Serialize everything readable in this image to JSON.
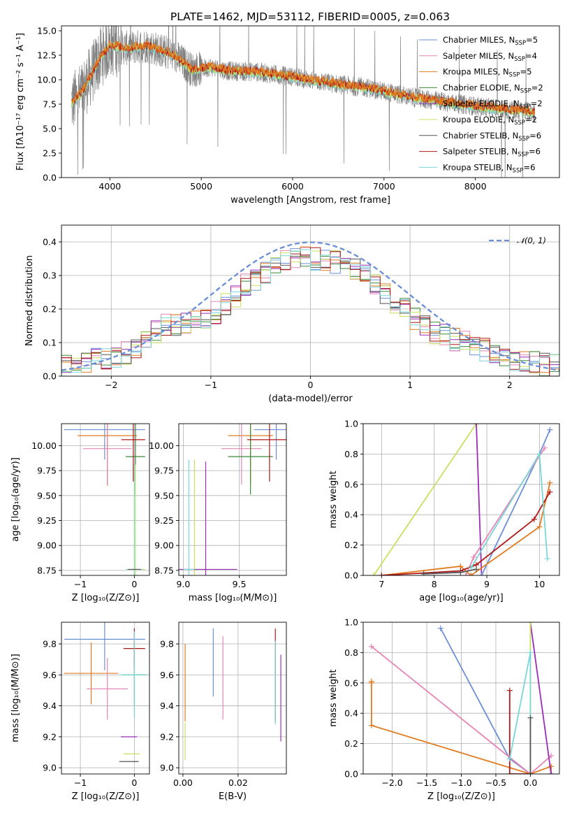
{
  "figure_title": "PLATE=1462, MJD=53112, FIBERID=0005, z=0.063",
  "legend": [
    {
      "text": "Chabrier MILES, N",
      "sub": "SSP",
      "tail": "=5",
      "color": "#6a8fd6"
    },
    {
      "text": "Salpeter MILES, N",
      "sub": "SSP",
      "tail": "=4",
      "color": "#e585b5"
    },
    {
      "text": "Kroupa MILES, N",
      "sub": "SSP",
      "tail": "=5",
      "color": "#e07b20"
    },
    {
      "text": "Chabrier ELODIE, N",
      "sub": "SSP",
      "tail": "=2",
      "color": "#3a8a3a"
    },
    {
      "text": "Salpeter ELODIE, N",
      "sub": "SSP",
      "tail": "=2",
      "color": "#9a2db8"
    },
    {
      "text": "Kroupa ELODIE, N",
      "sub": "SSP",
      "tail": "=2",
      "color": "#c8e060"
    },
    {
      "text": "Chabrier STELIB, N",
      "sub": "SSP",
      "tail": "=6",
      "color": "#555555"
    },
    {
      "text": "Salpeter STELIB, N",
      "sub": "SSP",
      "tail": "=6",
      "color": "#b01818"
    },
    {
      "text": "Kroupa STELIB, N",
      "sub": "SSP",
      "tail": "=6",
      "color": "#7ad6d6"
    }
  ],
  "normal_label": "𝒩(0, 1)",
  "chart_data": [
    {
      "id": "spectrum",
      "type": "line",
      "xlabel": "wavelength [Angstrom, rest frame]",
      "ylabel": "Flux [fλ10⁻¹⁷ erg cm⁻² s⁻¹ A⁻¹]",
      "xlim": [
        3470,
        8920
      ],
      "ylim": [
        0,
        15.5
      ],
      "xticks": [
        4000,
        5000,
        6000,
        7000,
        8000
      ],
      "yticks": [
        0.0,
        2.5,
        5.0,
        7.5,
        10.0,
        12.5,
        15.0
      ],
      "data_color": "#808080",
      "model_colors": [
        "#7ad6d6",
        "#c8e060",
        "#b01818",
        "#e07b20"
      ],
      "data_x_range": [
        3580,
        8650
      ],
      "model_anchor_points": {
        "x": [
          3580,
          3700,
          3900,
          4000,
          4200,
          4400,
          4700,
          4900,
          5100,
          5300,
          5600,
          6000,
          6300,
          6600,
          6800,
          7000,
          7300,
          7600,
          8000,
          8300,
          8650
        ],
        "y": [
          7.6,
          8.8,
          12.3,
          13.5,
          13.2,
          13.5,
          12.5,
          11.0,
          11.3,
          10.9,
          10.8,
          10.3,
          9.8,
          9.4,
          9.2,
          8.8,
          8.2,
          7.8,
          7.3,
          7.0,
          6.7
        ]
      }
    },
    {
      "id": "residual_histogram",
      "type": "line",
      "xlabel": "(data-model)/error",
      "ylabel": "Normed distribution",
      "xlim": [
        -2.5,
        2.5
      ],
      "ylim": [
        0,
        0.45
      ],
      "xticks": [
        -2,
        -1,
        0,
        1,
        2
      ],
      "yticks": [
        0.0,
        0.1,
        0.2,
        0.3,
        0.4
      ],
      "series": [
        {
          "name": "𝒩(0, 1)",
          "function": "normal pdf, mean 0, sigma 1",
          "color": "#6a8fd6"
        }
      ],
      "bin_count": 50,
      "histogram_colors": [
        "#6a8fd6",
        "#e585b5",
        "#e07b20",
        "#3a8a3a",
        "#9a2db8",
        "#c8e060",
        "#555555",
        "#b01818",
        "#7ad6d6"
      ],
      "histogram_base_heights": [
        0.035,
        0.04,
        0.045,
        0.05,
        0.055,
        0.06,
        0.07,
        0.08,
        0.1,
        0.13,
        0.15,
        0.155,
        0.16,
        0.165,
        0.17,
        0.19,
        0.215,
        0.24,
        0.27,
        0.29,
        0.31,
        0.33,
        0.34,
        0.35,
        0.355,
        0.35,
        0.345,
        0.34,
        0.33,
        0.32,
        0.3,
        0.27,
        0.24,
        0.22,
        0.2,
        0.17,
        0.15,
        0.13,
        0.12,
        0.11,
        0.1,
        0.09,
        0.08,
        0.07,
        0.06,
        0.05,
        0.045,
        0.04,
        0.035,
        0.03
      ]
    },
    {
      "id": "z_vs_age",
      "type": "scatter",
      "xlabel": "Z [log₁₀(Z/Z⊙)]",
      "ylabel": "age  [log₁₀(age/yr)]",
      "xlim": [
        -1.35,
        0.28
      ],
      "ylim": [
        8.7,
        10.22
      ],
      "xticks": [
        -1,
        0
      ],
      "yticks": [
        8.75,
        9.0,
        9.25,
        9.5,
        9.75,
        10.0
      ],
      "points": [
        {
          "x": -0.55,
          "y": 10.16,
          "xerr": 0.75,
          "yerr": 0.3,
          "color": "#6a8fd6"
        },
        {
          "x": -0.5,
          "y": 10.1,
          "xerr": 0.55,
          "yerr": 0.5,
          "color": "#e07b20"
        },
        {
          "x": -0.5,
          "y": 9.97,
          "xerr": 0.45,
          "yerr": 0.36,
          "color": "#e585b5"
        },
        {
          "x": 0.02,
          "y": 9.89,
          "xerr": 0.18,
          "yerr": 0.38,
          "color": "#3a8a3a"
        },
        {
          "x": -0.02,
          "y": 10.06,
          "xerr": 0.22,
          "yerr": 0.42,
          "color": "#b01818"
        },
        {
          "x": 0.02,
          "y": 8.76,
          "xerr": 0.18,
          "yerr": 1.05,
          "color": "#c8e060"
        },
        {
          "x": 0.0,
          "y": 8.76,
          "xerr": 0.15,
          "yerr": 1.05,
          "color": "#7ad6d6"
        },
        {
          "x": 0.0,
          "y": 8.76,
          "xerr": 0.12,
          "yerr": 0.0,
          "color": "#555555"
        }
      ]
    },
    {
      "id": "mass_vs_age",
      "type": "scatter",
      "xlabel": "mass [log₁₀(M/M⊙)]",
      "ylabel": "",
      "xlim": [
        8.96,
        9.92
      ],
      "ylim": [
        8.7,
        10.22
      ],
      "xticks": [
        9.0,
        9.5
      ],
      "yticks": [
        8.75,
        9.0,
        9.25,
        9.5,
        9.75,
        10.0
      ],
      "points": [
        {
          "x": 9.83,
          "y": 10.16,
          "xerr": 0.2,
          "yerr": 0.3,
          "color": "#6a8fd6"
        },
        {
          "x": 9.6,
          "y": 10.1,
          "xerr": 0.2,
          "yerr": 0.5,
          "color": "#e07b20"
        },
        {
          "x": 9.52,
          "y": 9.97,
          "xerr": 0.18,
          "yerr": 0.36,
          "color": "#e585b5"
        },
        {
          "x": 9.6,
          "y": 9.89,
          "xerr": 0.2,
          "yerr": 0.38,
          "color": "#3a8a3a"
        },
        {
          "x": 9.77,
          "y": 10.06,
          "xerr": 0.2,
          "yerr": 0.42,
          "color": "#b01818"
        },
        {
          "x": 9.1,
          "y": 8.76,
          "xerr": 0.12,
          "yerr": 1.1,
          "color": "#c8e060"
        },
        {
          "x": 9.2,
          "y": 8.76,
          "xerr": 0.28,
          "yerr": 1.08,
          "color": "#9a2db8"
        },
        {
          "x": 9.05,
          "y": 8.76,
          "xerr": 0.05,
          "yerr": 1.1,
          "color": "#7ad6d6"
        }
      ]
    },
    {
      "id": "age_vs_weight",
      "type": "line",
      "xlabel": "age  [log₁₀(age/yr)]",
      "ylabel": "mass weight",
      "xlim": [
        6.65,
        10.38
      ],
      "ylim": [
        0,
        1.0
      ],
      "xticks": [
        7,
        8,
        9,
        10
      ],
      "yticks": [
        0.0,
        0.2,
        0.4,
        0.6,
        0.8,
        1.0
      ],
      "series": [
        {
          "name": "Kroupa ELODIE",
          "color": "#c8e060",
          "x": [
            6.85,
            8.8
          ],
          "y": [
            0.0,
            1.0
          ]
        },
        {
          "name": "Salpeter ELODIE",
          "color": "#9a2db8",
          "x": [
            8.8,
            8.9
          ],
          "y": [
            1.0,
            0.0
          ]
        },
        {
          "name": "Chabrier MILES",
          "color": "#6a8fd6",
          "x": [
            8.9,
            10.0,
            10.2
          ],
          "y": [
            0.0,
            0.8,
            0.96
          ]
        },
        {
          "name": "Salpeter MILES",
          "color": "#e585b5",
          "x": [
            8.6,
            8.75,
            10.1
          ],
          "y": [
            0.0,
            0.12,
            0.84
          ]
        },
        {
          "name": "Kroupa MILES",
          "color": "#e07b20",
          "x": [
            7.0,
            8.5,
            8.7,
            10.0,
            10.2
          ],
          "y": [
            0.0,
            0.06,
            0.0,
            0.32,
            0.61
          ]
        },
        {
          "name": "Salpeter STELIB",
          "color": "#b01818",
          "x": [
            7.0,
            8.5,
            8.8,
            9.9,
            10.2
          ],
          "y": [
            0.0,
            0.03,
            0.07,
            0.37,
            0.55
          ]
        },
        {
          "name": "Kroupa STELIB",
          "color": "#7ad6d6",
          "x": [
            8.7,
            10.0,
            10.15
          ],
          "y": [
            0.05,
            0.8,
            0.11
          ]
        },
        {
          "name": "Chabrier STELIB",
          "color": "#555555",
          "x": [
            7.8,
            8.5,
            8.8
          ],
          "y": [
            0.01,
            0.02,
            0.04
          ]
        }
      ]
    },
    {
      "id": "z_vs_mass",
      "type": "scatter",
      "xlabel": "Z [log₁₀(Z/Z⊙)]",
      "ylabel": "mass [log₁₀(M/M⊙)]",
      "xlim": [
        -1.35,
        0.28
      ],
      "ylim": [
        8.96,
        9.94
      ],
      "xticks": [
        -1,
        0
      ],
      "yticks": [
        9.0,
        9.2,
        9.4,
        9.6,
        9.8
      ],
      "points": [
        {
          "x": -0.55,
          "y": 9.83,
          "xerr": 0.75,
          "yerr": 0.2,
          "color": "#6a8fd6"
        },
        {
          "x": -0.8,
          "y": 9.61,
          "xerr": 0.5,
          "yerr": 0.2,
          "color": "#e07b20"
        },
        {
          "x": -0.5,
          "y": 9.51,
          "xerr": 0.38,
          "yerr": 0.2,
          "color": "#e585b5"
        },
        {
          "x": 0.0,
          "y": 9.6,
          "xerr": 0.22,
          "yerr": 0.2,
          "color": "#3a8a3a"
        },
        {
          "x": 0.0,
          "y": 9.77,
          "xerr": 0.2,
          "yerr": 0.13,
          "color": "#b01818"
        },
        {
          "x": 0.0,
          "y": 9.6,
          "xerr": 0.25,
          "yerr": 0.28,
          "color": "#7ad6d6"
        },
        {
          "x": -0.05,
          "y": 9.09,
          "xerr": 0.15,
          "yerr": 0.0,
          "color": "#c8e060"
        },
        {
          "x": -0.1,
          "y": 9.2,
          "xerr": 0.15,
          "yerr": 0.0,
          "color": "#9a2db8"
        },
        {
          "x": -0.1,
          "y": 9.04,
          "xerr": 0.18,
          "yerr": 0.0,
          "color": "#555555"
        }
      ]
    },
    {
      "id": "ebv_vs_mass",
      "type": "scatter",
      "xlabel": "E(B-V)",
      "ylabel": "",
      "xlim": [
        -0.0015,
        0.0375
      ],
      "ylim": [
        8.96,
        9.94
      ],
      "xticks": [
        0.0,
        0.02
      ],
      "yticks": [
        9.0,
        9.2,
        9.4,
        9.6,
        9.8
      ],
      "points": [
        {
          "x": 0.011,
          "y": 9.68,
          "xerr": 0.0,
          "yerr": 0.22,
          "color": "#6a8fd6"
        },
        {
          "x": 0.0145,
          "y": 9.58,
          "xerr": 0.0,
          "yerr": 0.27,
          "color": "#e585b5"
        },
        {
          "x": 0.0008,
          "y": 9.55,
          "xerr": 0.0,
          "yerr": 0.25,
          "color": "#e07b20"
        },
        {
          "x": 0.0008,
          "y": 9.17,
          "xerr": 0.0,
          "yerr": 0.12,
          "color": "#c8e060"
        },
        {
          "x": 0.0335,
          "y": 9.6,
          "xerr": 0.0,
          "yerr": 0.3,
          "color": "#b01818"
        },
        {
          "x": 0.0335,
          "y": 9.55,
          "xerr": 0.0,
          "yerr": 0.27,
          "color": "#7ad6d6"
        },
        {
          "x": 0.0355,
          "y": 9.45,
          "xerr": 0.0,
          "yerr": 0.28,
          "color": "#9a2db8"
        }
      ]
    },
    {
      "id": "z_vs_weight",
      "type": "line",
      "xlabel": "Z [log₁₀(Z/Z⊙)]",
      "ylabel": "mass weight",
      "xlim": [
        -2.42,
        0.42
      ],
      "ylim": [
        0,
        1.0
      ],
      "xticks": [
        -2.0,
        -1.5,
        -1.0,
        -0.5,
        0.0
      ],
      "yticks": [
        0.0,
        0.2,
        0.4,
        0.6,
        0.8,
        1.0
      ],
      "series": [
        {
          "name": "Chabrier MILES",
          "color": "#6a8fd6",
          "x": [
            -1.3,
            -0.3,
            0.0
          ],
          "y": [
            0.96,
            0.1,
            0.0
          ]
        },
        {
          "name": "Salpeter MILES",
          "color": "#e585b5",
          "x": [
            -2.3,
            0.0,
            0.3
          ],
          "y": [
            0.84,
            0.0,
            0.12
          ]
        },
        {
          "name": "Kroupa MILES",
          "color": "#e07b20",
          "x": [
            -2.3,
            -2.3,
            -2.3,
            0.0,
            0.3,
            0.3
          ],
          "y": [
            0.61,
            0.6,
            0.32,
            0.0,
            0.05,
            0.0
          ]
        },
        {
          "name": "Salpeter STELIB",
          "color": "#b01818",
          "x": [
            -0.3,
            -0.3,
            0.0
          ],
          "y": [
            0.55,
            0.0,
            0.0
          ]
        },
        {
          "name": "Salpeter ELODIE",
          "color": "#9a2db8",
          "x": [
            0.0,
            0.3
          ],
          "y": [
            1.0,
            0.0
          ]
        },
        {
          "name": "Kroupa ELODIE",
          "color": "#c8e060",
          "x": [
            0.0,
            0.0
          ],
          "y": [
            1.0,
            0.0
          ]
        },
        {
          "name": "Kroupa STELIB",
          "color": "#7ad6d6",
          "x": [
            -0.3,
            0.0,
            0.0
          ],
          "y": [
            0.1,
            0.8,
            0.0
          ]
        },
        {
          "name": "Chabrier STELIB",
          "color": "#555555",
          "x": [
            0.0,
            0.0
          ],
          "y": [
            0.37,
            0.0
          ]
        }
      ]
    }
  ]
}
